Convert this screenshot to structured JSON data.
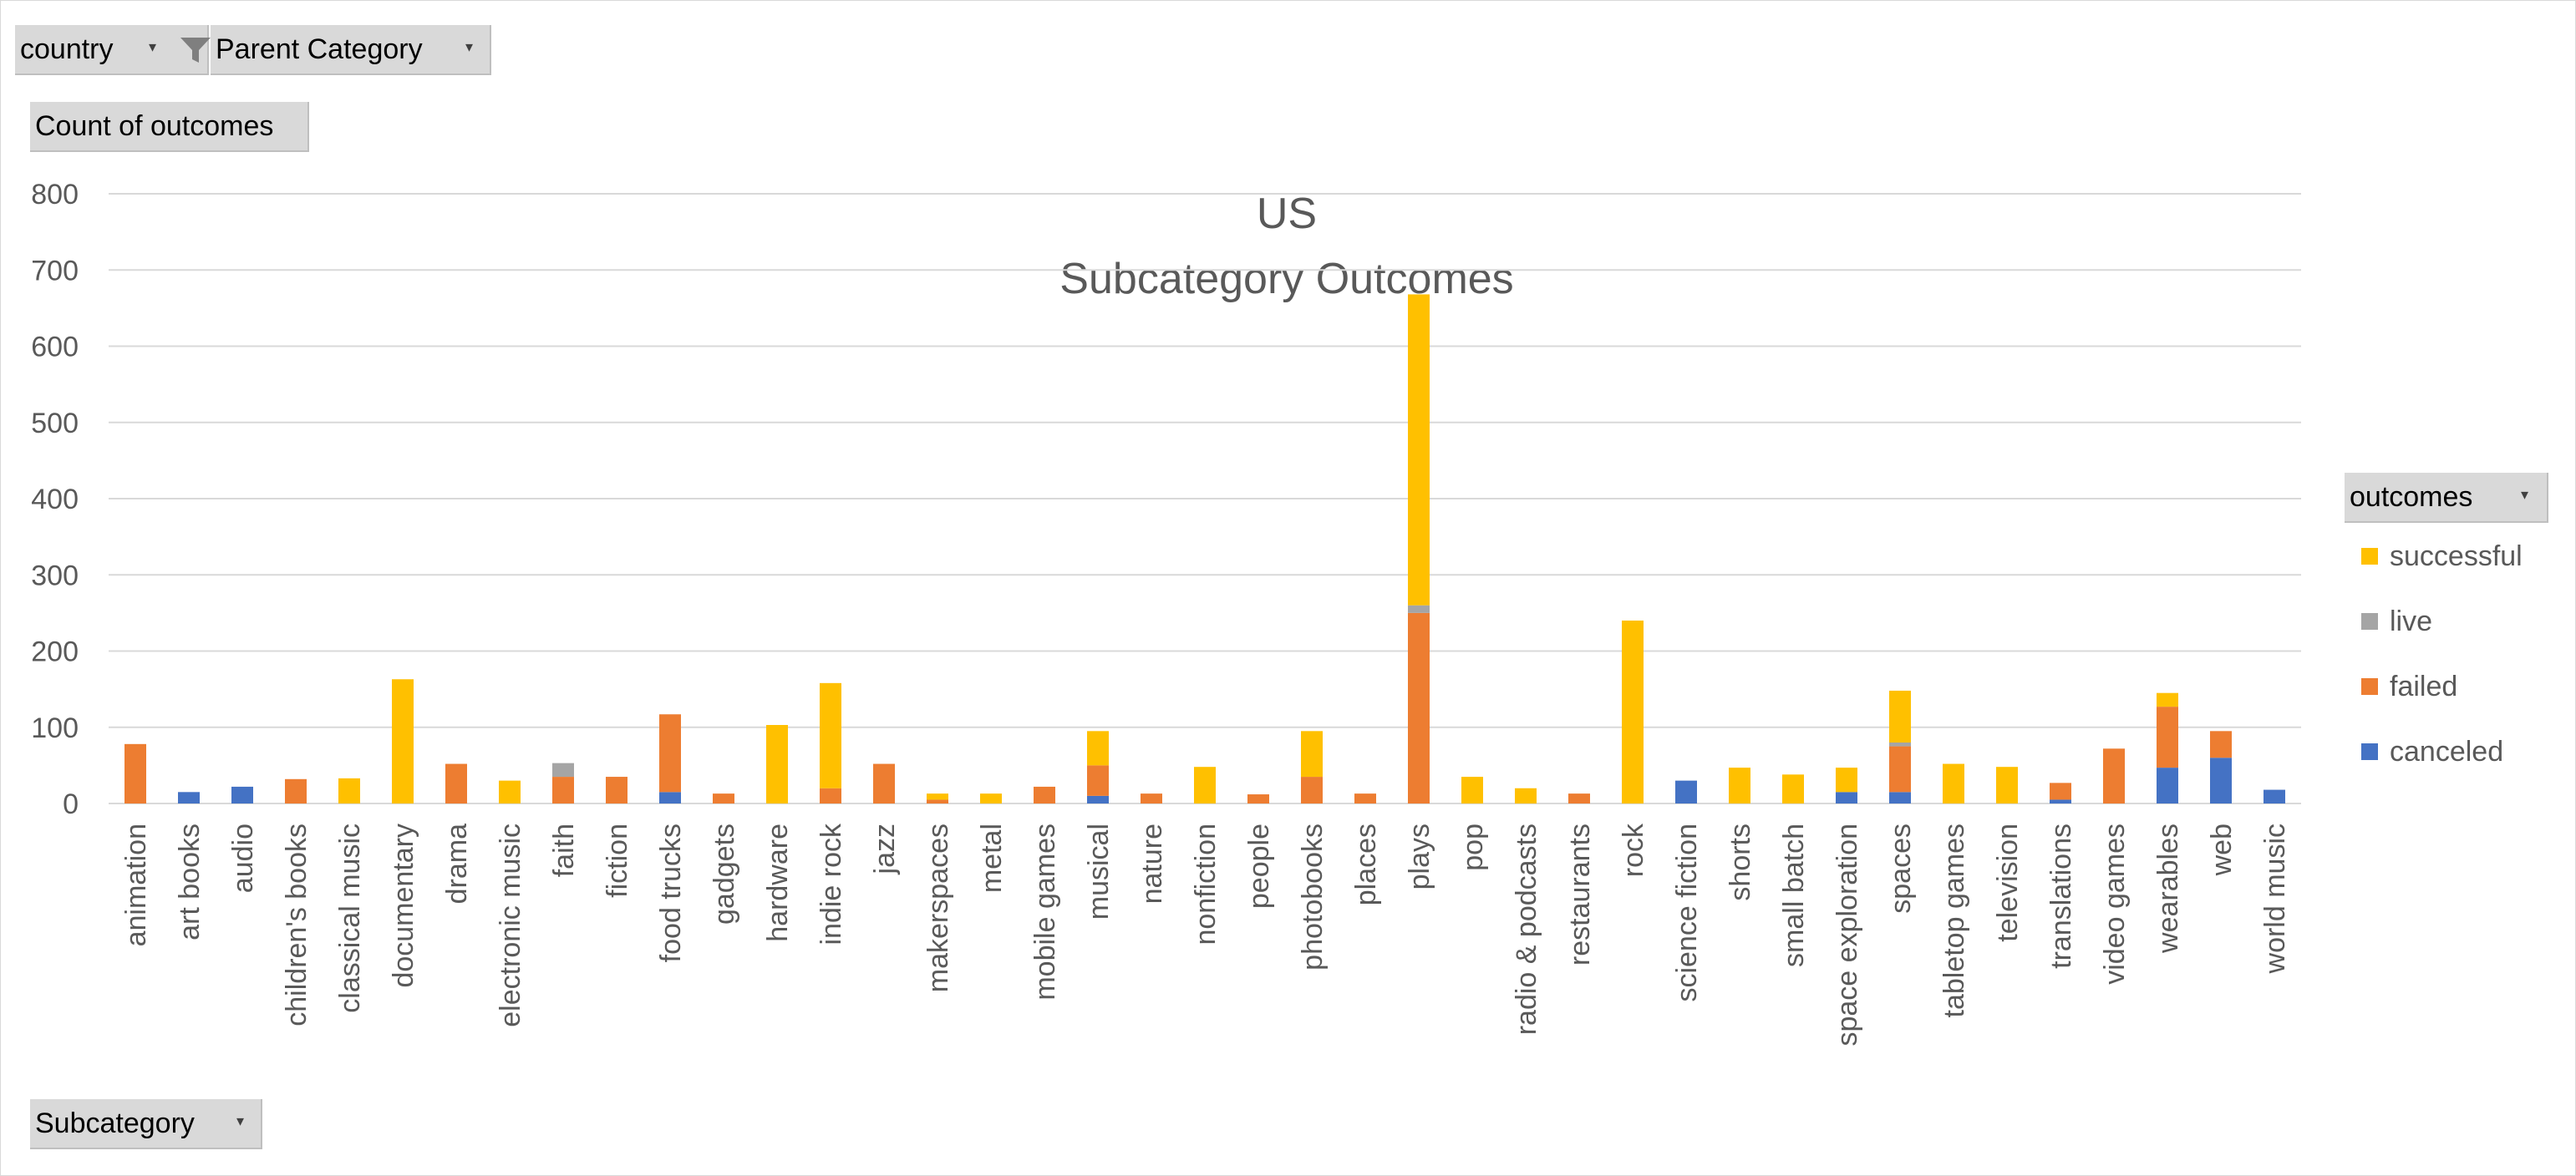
{
  "pivot_fields": {
    "country_label": "country",
    "parent_category_label": "Parent Category",
    "values_label": "Count of outcomes",
    "axis_field_label": "Subcategory",
    "legend_field_label": "outcomes",
    "dropdown_glyph": "▾",
    "filter_icon": "funnel-filter-icon"
  },
  "colors": {
    "successful": "#ffc000",
    "live": "#a5a5a5",
    "failed": "#ed7d31",
    "canceled": "#4472c4",
    "grid": "#d9d9d9",
    "text": "#595959"
  },
  "chart_data": {
    "type": "bar",
    "stacked": true,
    "title": "US",
    "subtitle": "Subcategory Outcomes",
    "xlabel": "",
    "ylabel": "",
    "ylim": [
      0,
      800
    ],
    "yticks": [
      0,
      100,
      200,
      300,
      400,
      500,
      600,
      700,
      800
    ],
    "grid": true,
    "legend_position": "right",
    "categories": [
      "animation",
      "art books",
      "audio",
      "children's books",
      "classical music",
      "documentary",
      "drama",
      "electronic music",
      "faith",
      "fiction",
      "food trucks",
      "gadgets",
      "hardware",
      "indie rock",
      "jazz",
      "makerspaces",
      "metal",
      "mobile games",
      "musical",
      "nature",
      "nonfiction",
      "people",
      "photobooks",
      "places",
      "plays",
      "pop",
      "radio & podcasts",
      "restaurants",
      "rock",
      "science fiction",
      "shorts",
      "small batch",
      "space exploration",
      "spaces",
      "tabletop games",
      "television",
      "translations",
      "video games",
      "wearables",
      "web",
      "world music"
    ],
    "series": [
      {
        "name": "canceled",
        "values": [
          0,
          15,
          22,
          0,
          0,
          0,
          0,
          0,
          0,
          0,
          15,
          0,
          0,
          0,
          0,
          0,
          0,
          0,
          10,
          0,
          0,
          0,
          0,
          0,
          0,
          0,
          0,
          0,
          0,
          30,
          0,
          0,
          15,
          15,
          0,
          0,
          5,
          0,
          47,
          60,
          18
        ]
      },
      {
        "name": "failed",
        "values": [
          78,
          0,
          0,
          32,
          0,
          0,
          52,
          0,
          35,
          35,
          102,
          13,
          0,
          20,
          52,
          5,
          0,
          22,
          40,
          13,
          0,
          12,
          35,
          13,
          250,
          0,
          0,
          13,
          0,
          0,
          0,
          0,
          0,
          60,
          0,
          0,
          22,
          72,
          80,
          35,
          0
        ]
      },
      {
        "name": "live",
        "values": [
          0,
          0,
          0,
          0,
          0,
          0,
          0,
          0,
          18,
          0,
          0,
          0,
          0,
          0,
          0,
          0,
          0,
          0,
          0,
          0,
          0,
          0,
          0,
          0,
          10,
          0,
          0,
          0,
          0,
          0,
          0,
          0,
          0,
          5,
          0,
          0,
          0,
          0,
          0,
          0,
          0
        ]
      },
      {
        "name": "successful",
        "values": [
          0,
          0,
          0,
          0,
          33,
          163,
          0,
          30,
          0,
          0,
          0,
          0,
          103,
          138,
          0,
          8,
          13,
          0,
          45,
          0,
          48,
          0,
          60,
          0,
          408,
          35,
          20,
          0,
          240,
          0,
          47,
          38,
          32,
          68,
          52,
          48,
          0,
          0,
          18,
          0,
          0
        ]
      }
    ]
  }
}
